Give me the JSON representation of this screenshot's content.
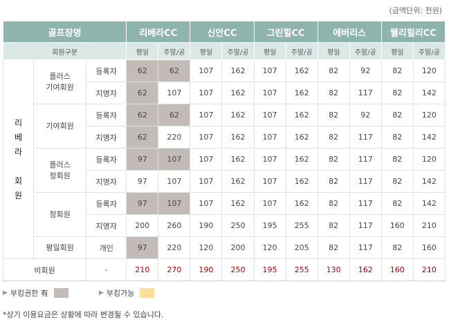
{
  "unit_note": "(금액단위: 천원)",
  "header": {
    "course_label": "골프장명",
    "courses": [
      "리베라CC",
      "신안CC",
      "그린힐CC",
      "에버리스",
      "웰리힐리CC"
    ],
    "member_type_label": "회원구분",
    "weekday": "평일",
    "weekend": "주말/공"
  },
  "member_group": [
    "리",
    "베",
    "라",
    "",
    "회",
    "원"
  ],
  "rows": [
    {
      "cat": "플러스\n기여회원",
      "sub": "등록자",
      "values": [
        "62",
        "62",
        "107",
        "162",
        "107",
        "162",
        "82",
        "92",
        "82",
        "120"
      ],
      "shaded": [
        true,
        true
      ]
    },
    {
      "sub": "지명자",
      "values": [
        "62",
        "107",
        "107",
        "162",
        "107",
        "162",
        "82",
        "117",
        "82",
        "142"
      ],
      "shaded": [
        true,
        false
      ]
    },
    {
      "cat": "기여회원",
      "sub": "등록자",
      "values": [
        "62",
        "62",
        "107",
        "162",
        "107",
        "162",
        "82",
        "92",
        "82",
        "120"
      ],
      "shaded": [
        true,
        true
      ]
    },
    {
      "sub": "지명자",
      "values": [
        "62",
        "220",
        "107",
        "162",
        "107",
        "162",
        "82",
        "117",
        "82",
        "142"
      ],
      "shaded": [
        true,
        false
      ]
    },
    {
      "cat": "플러스\n정회원",
      "sub": "등록자",
      "values": [
        "97",
        "107",
        "107",
        "162",
        "107",
        "162",
        "82",
        "117",
        "82",
        "120"
      ],
      "shaded": [
        true,
        true
      ]
    },
    {
      "sub": "지명자",
      "values": [
        "97",
        "107",
        "107",
        "162",
        "107",
        "162",
        "82",
        "117",
        "82",
        "142"
      ],
      "shaded": [
        false,
        false
      ]
    },
    {
      "cat": "정회원",
      "sub": "등록자",
      "values": [
        "97",
        "107",
        "107",
        "162",
        "107",
        "162",
        "82",
        "117",
        "82",
        "142"
      ],
      "shaded": [
        true,
        true
      ]
    },
    {
      "sub": "지명자",
      "values": [
        "200",
        "260",
        "190",
        "250",
        "195",
        "255",
        "82",
        "117",
        "160",
        "210"
      ],
      "shaded": [
        false,
        false
      ]
    },
    {
      "cat": "평일회원",
      "sub": "개인",
      "values": [
        "97",
        "220",
        "120",
        "200",
        "120",
        "205",
        "82",
        "117",
        "82",
        "160"
      ],
      "shaded": [
        true,
        false
      ]
    }
  ],
  "non_member": {
    "label": "비회원",
    "sub": "-",
    "values": [
      "210",
      "270",
      "190",
      "250",
      "195",
      "255",
      "130",
      "162",
      "160",
      "210"
    ]
  },
  "legend": {
    "rights_label": "부킹권한 有",
    "rights_color": "#c3bcb6",
    "available_label": "부킹가능",
    "available_color": "#fddf9a"
  },
  "footnote": "*상기 이용요금은 상황에 따라 변경될 수 있습니다."
}
